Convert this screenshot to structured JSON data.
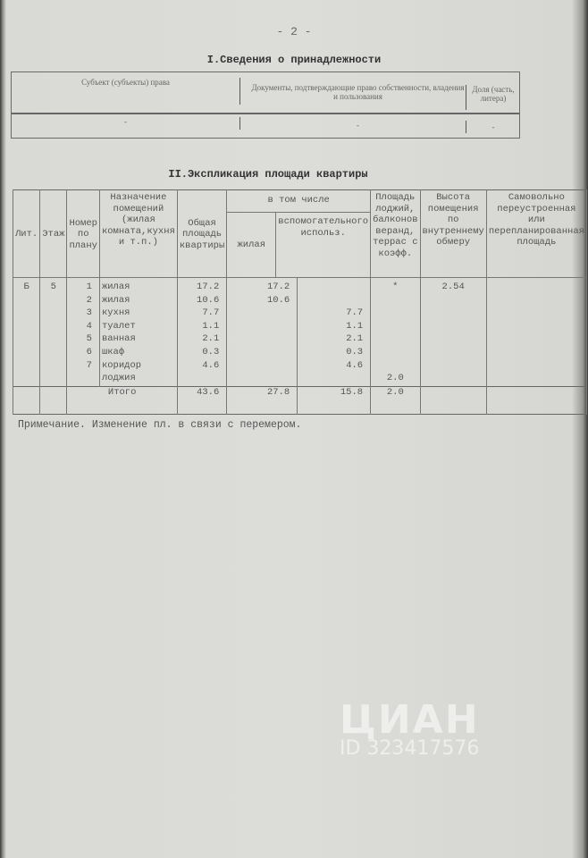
{
  "page_number": "- 2 -",
  "section1": {
    "title": "I.Сведения о принадлежности",
    "headers": [
      "Субъект (субъекты) права",
      "Документы, подтверждающие право собственности, владения и пользования",
      "Доля (часть, литера)"
    ],
    "values": [
      "-",
      "-",
      "-"
    ]
  },
  "section2": {
    "title": "II.Экспликация площади квартиры",
    "headers": {
      "lit": "Лит.",
      "floor": "Этаж",
      "plan_no": "Номер по плану",
      "purpose": "Назначение помещений (жилая комната,кухня и т.п.)",
      "total": "Общая площадь квартиры",
      "incl": "в том числе",
      "living": "жилая",
      "aux": "вспомогательного использ.",
      "loggia": "Площадь лоджий, балконов веранд, террас с коэфф.",
      "height": "Высота помещения по внутреннему обмеру",
      "unauth": "Самовольно переустроенная или перепланированная площадь"
    },
    "lit": "Б",
    "floor": "5",
    "rows": [
      {
        "no": "1",
        "name": "жилая",
        "total": "17.2",
        "living": "17.2",
        "aux": "",
        "loggia": "*",
        "height": "2.54"
      },
      {
        "no": "2",
        "name": "жилая",
        "total": "10.6",
        "living": "10.6",
        "aux": "",
        "loggia": "",
        "height": ""
      },
      {
        "no": "3",
        "name": "кухня",
        "total": "7.7",
        "living": "",
        "aux": "7.7",
        "loggia": "",
        "height": ""
      },
      {
        "no": "4",
        "name": "туалет",
        "total": "1.1",
        "living": "",
        "aux": "1.1",
        "loggia": "",
        "height": ""
      },
      {
        "no": "5",
        "name": "ванная",
        "total": "2.1",
        "living": "",
        "aux": "2.1",
        "loggia": "",
        "height": ""
      },
      {
        "no": "6",
        "name": "шкаф",
        "total": "0.3",
        "living": "",
        "aux": "0.3",
        "loggia": "",
        "height": ""
      },
      {
        "no": "7",
        "name": "коридор",
        "total": "4.6",
        "living": "",
        "aux": "4.6",
        "loggia": "",
        "height": ""
      },
      {
        "no": "",
        "name": "лоджия",
        "total": "",
        "living": "",
        "aux": "",
        "loggia": "2.0",
        "height": ""
      }
    ],
    "total": {
      "label": "Итого",
      "total": "43.6",
      "living": "27.8",
      "aux": "15.8",
      "loggia": "2.0"
    }
  },
  "note": "Примечание. Изменение пл. в связи с перемером.",
  "watermark": {
    "brand": "ЦИАН",
    "id": "ID 323417576"
  }
}
